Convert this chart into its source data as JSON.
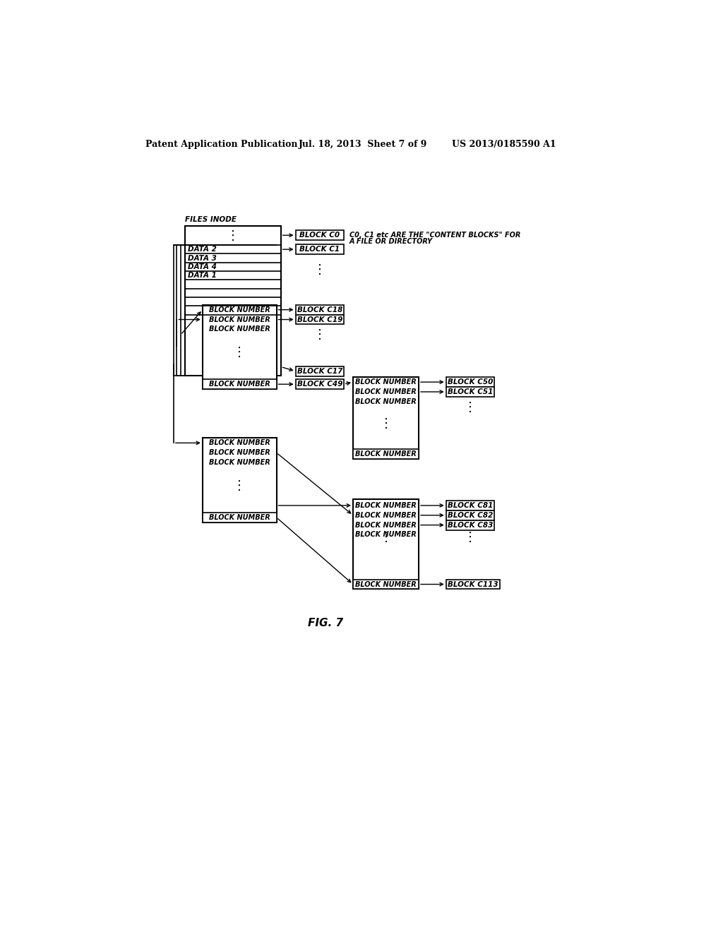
{
  "header_left": "Patent Application Publication",
  "header_mid": "Jul. 18, 2013  Sheet 7 of 9",
  "header_right": "US 2013/0185590 A1",
  "fig_label": "FIG. 7",
  "annotation_line1": "C0, C1 etc ARE THE \"CONTENT BLOCKS\" FOR",
  "annotation_line2": "A FILE OR DIRECTORY",
  "bg_color": "#ffffff",
  "font_size": 7.5,
  "header_font_size": 9
}
